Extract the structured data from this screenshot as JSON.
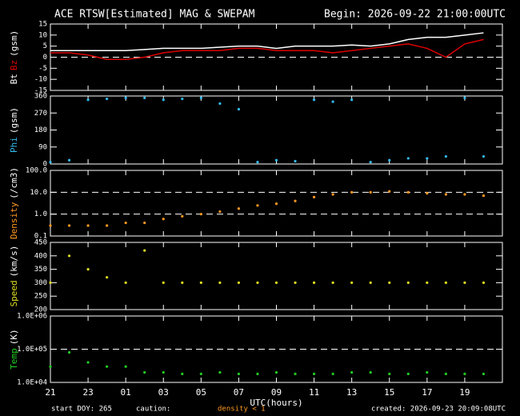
{
  "header": {
    "title": "ACE RTSW[Estimated] MAG & SWEPAM",
    "begin": "Begin: 2026-09-22 21:00:00UTC"
  },
  "footer": {
    "start": "start DOY: 265",
    "caution": "caution:",
    "caution_note": "density < 1",
    "created": "created: 2026-09-23 20:09:08UTC"
  },
  "chart_data": [
    {
      "type": "line",
      "ylabel": "(gsm)",
      "xlim": [
        0,
        24
      ],
      "ylim": [
        -15,
        15
      ],
      "yticks": [
        -15,
        -10,
        -5,
        0,
        5,
        10,
        15
      ],
      "ref_lines": [
        0
      ],
      "x": [
        0,
        1,
        2,
        3,
        4,
        5,
        6,
        7,
        8,
        9,
        10,
        11,
        12,
        13,
        14,
        15,
        16,
        17,
        18,
        19,
        20,
        21,
        22,
        23
      ],
      "series": [
        {
          "name": "Bt",
          "color": "#ffffff",
          "values": [
            3,
            3,
            3,
            3,
            3,
            3.5,
            4,
            4,
            4,
            4.5,
            5,
            5,
            4,
            5,
            5,
            5,
            5.5,
            5,
            6,
            8,
            9,
            9,
            10,
            11
          ]
        },
        {
          "name": "Bz",
          "color": "#dd0000",
          "values": [
            2,
            2,
            1,
            -1,
            -1,
            0,
            2,
            3,
            3,
            3,
            4,
            4,
            3,
            3,
            3,
            2,
            3,
            4,
            5,
            6,
            4,
            0,
            6,
            8
          ]
        }
      ]
    },
    {
      "type": "scatter",
      "ylabel": "(gsm)",
      "xlim": [
        0,
        24
      ],
      "ylim": [
        0,
        360
      ],
      "yticks": [
        0,
        90,
        180,
        270,
        360
      ],
      "x": [
        0,
        1,
        2,
        3,
        4,
        5,
        6,
        7,
        8,
        9,
        10,
        11,
        12,
        13,
        14,
        15,
        16,
        17,
        18,
        19,
        20,
        21,
        22,
        23
      ],
      "series": [
        {
          "name": "Phi",
          "color": "#33bbee",
          "values": [
            10,
            20,
            340,
            345,
            350,
            350,
            340,
            345,
            350,
            320,
            290,
            10,
            20,
            15,
            340,
            330,
            340,
            10,
            20,
            30,
            30,
            40,
            350,
            40
          ]
        }
      ]
    },
    {
      "type": "scatter",
      "ylabel": "(/cm3)",
      "log": true,
      "xlim": [
        0,
        24
      ],
      "ylim": [
        0.1,
        100
      ],
      "yticks": [
        {
          "value": 0.1,
          "label": "0.1"
        },
        {
          "value": 1,
          "label": "1.0"
        },
        {
          "value": 10,
          "label": "10.0"
        },
        {
          "value": 100,
          "label": "100.0"
        }
      ],
      "ref_lines": [
        1,
        10
      ],
      "x": [
        0,
        1,
        2,
        3,
        4,
        5,
        6,
        7,
        8,
        9,
        10,
        11,
        12,
        13,
        14,
        15,
        16,
        17,
        18,
        19,
        20,
        21,
        22,
        23
      ],
      "series": [
        {
          "name": "Density",
          "color": "#ff9922",
          "values": [
            0.3,
            0.3,
            0.3,
            0.3,
            0.4,
            0.4,
            0.6,
            0.8,
            1.0,
            1.3,
            1.8,
            2.5,
            3,
            4,
            6,
            8,
            10,
            10,
            11,
            10,
            9,
            8,
            8,
            7
          ]
        }
      ]
    },
    {
      "type": "scatter",
      "ylabel": "(km/s)",
      "xlim": [
        0,
        24
      ],
      "ylim": [
        200,
        450
      ],
      "yticks": [
        200,
        250,
        300,
        350,
        400,
        450
      ],
      "x": [
        0,
        1,
        2,
        3,
        4,
        5,
        6,
        7,
        8,
        9,
        10,
        11,
        12,
        13,
        14,
        15,
        16,
        17,
        18,
        19,
        20,
        21,
        22,
        23
      ],
      "series": [
        {
          "name": "Speed",
          "color": "#dddd22",
          "values": [
            300,
            400,
            350,
            320,
            300,
            420,
            300,
            300,
            300,
            300,
            300,
            300,
            300,
            300,
            300,
            300,
            300,
            300,
            300,
            300,
            300,
            300,
            300,
            300
          ]
        }
      ]
    },
    {
      "type": "scatter",
      "ylabel": "(K)",
      "log": true,
      "xlim": [
        0,
        24
      ],
      "ylim": [
        10000,
        1000000
      ],
      "yticks": [
        {
          "value": 10000,
          "label": "1.0E+04"
        },
        {
          "value": 100000,
          "label": "1.0E+05"
        },
        {
          "value": 1000000,
          "label": "1.0E+06"
        }
      ],
      "ref_lines": [
        100000
      ],
      "x": [
        0,
        1,
        2,
        3,
        4,
        5,
        6,
        7,
        8,
        9,
        10,
        11,
        12,
        13,
        14,
        15,
        16,
        17,
        18,
        19,
        20,
        21,
        22,
        23
      ],
      "series": [
        {
          "name": "Temp",
          "color": "#22cc22",
          "values": [
            30000,
            80000,
            40000,
            30000,
            30000,
            20000,
            20000,
            18000,
            18000,
            20000,
            18000,
            18000,
            20000,
            18000,
            18000,
            18000,
            20000,
            20000,
            18000,
            18000,
            20000,
            18000,
            18000,
            18000
          ]
        }
      ],
      "xlabel": "UTC(hours)",
      "xticks": [
        {
          "value": 0,
          "label": "21"
        },
        {
          "value": 2,
          "label": "23"
        },
        {
          "value": 4,
          "label": "01"
        },
        {
          "value": 6,
          "label": "03"
        },
        {
          "value": 8,
          "label": "05"
        },
        {
          "value": 10,
          "label": "07"
        },
        {
          "value": 12,
          "label": "09"
        },
        {
          "value": 14,
          "label": "11"
        },
        {
          "value": 16,
          "label": "13"
        },
        {
          "value": 18,
          "label": "15"
        },
        {
          "value": 20,
          "label": "17"
        },
        {
          "value": 22,
          "label": "19"
        }
      ]
    }
  ]
}
